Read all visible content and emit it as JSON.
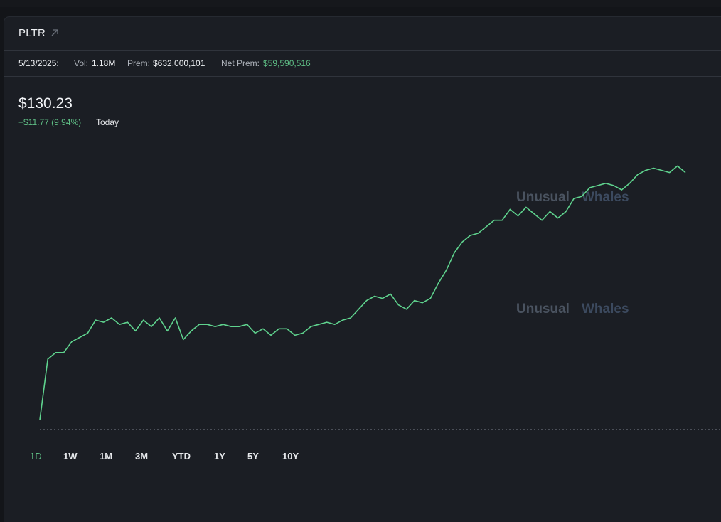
{
  "header": {
    "ticker": "PLTR",
    "link_icon": "external-link-icon"
  },
  "stats": {
    "date": "5/13/2025:",
    "vol_label": "Vol:",
    "vol_value": "1.18M",
    "prem_label": "Prem:",
    "prem_value": "$632,000,101",
    "net_prem_label": "Net Prem:",
    "net_prem_value": "$59,590,516"
  },
  "quote": {
    "price": "$130.23",
    "change": "+$11.77 (9.94%)",
    "period": "Today"
  },
  "watermark": {
    "word1": "Unusual",
    "word2": "Whales"
  },
  "ranges": [
    "1D",
    "1W",
    "1M",
    "3M",
    "YTD",
    "1Y",
    "5Y",
    "10Y"
  ],
  "active_range": "1D",
  "colors": {
    "line": "#5fd38e",
    "accent_green": "#5fbf86",
    "watermark1": "#4a5360",
    "watermark2": "#3c4a5f",
    "baseline": "#5c616b"
  },
  "chart_data": {
    "type": "line",
    "title": "",
    "xlabel": "",
    "ylabel": "",
    "grid": false,
    "legend": "none",
    "ylim": [
      117.8,
      131.4
    ],
    "baseline": 118.46,
    "series": [
      {
        "values": [
          118.9,
          121.7,
          122.0,
          122.0,
          122.5,
          122.7,
          122.9,
          123.5,
          123.4,
          123.6,
          123.3,
          123.4,
          123.0,
          123.5,
          123.2,
          123.6,
          123.0,
          123.6,
          122.6,
          123.0,
          123.3,
          123.3,
          123.2,
          123.3,
          123.2,
          123.2,
          123.3,
          122.9,
          123.1,
          122.8,
          123.1,
          123.1,
          122.8,
          122.9,
          123.2,
          123.3,
          123.4,
          123.3,
          123.5,
          123.6,
          124.0,
          124.4,
          124.6,
          124.5,
          124.7,
          124.2,
          124.0,
          124.4,
          124.3,
          124.5,
          125.2,
          125.8,
          126.6,
          127.1,
          127.4,
          127.5,
          127.8,
          128.1,
          128.1,
          128.6,
          128.3,
          128.7,
          128.4,
          128.1,
          128.5,
          128.2,
          128.5,
          129.1,
          129.2,
          129.6,
          129.7,
          129.8,
          129.7,
          129.5,
          129.8,
          130.2,
          130.4,
          130.5,
          130.4,
          130.3,
          130.6,
          130.3
        ]
      }
    ]
  }
}
